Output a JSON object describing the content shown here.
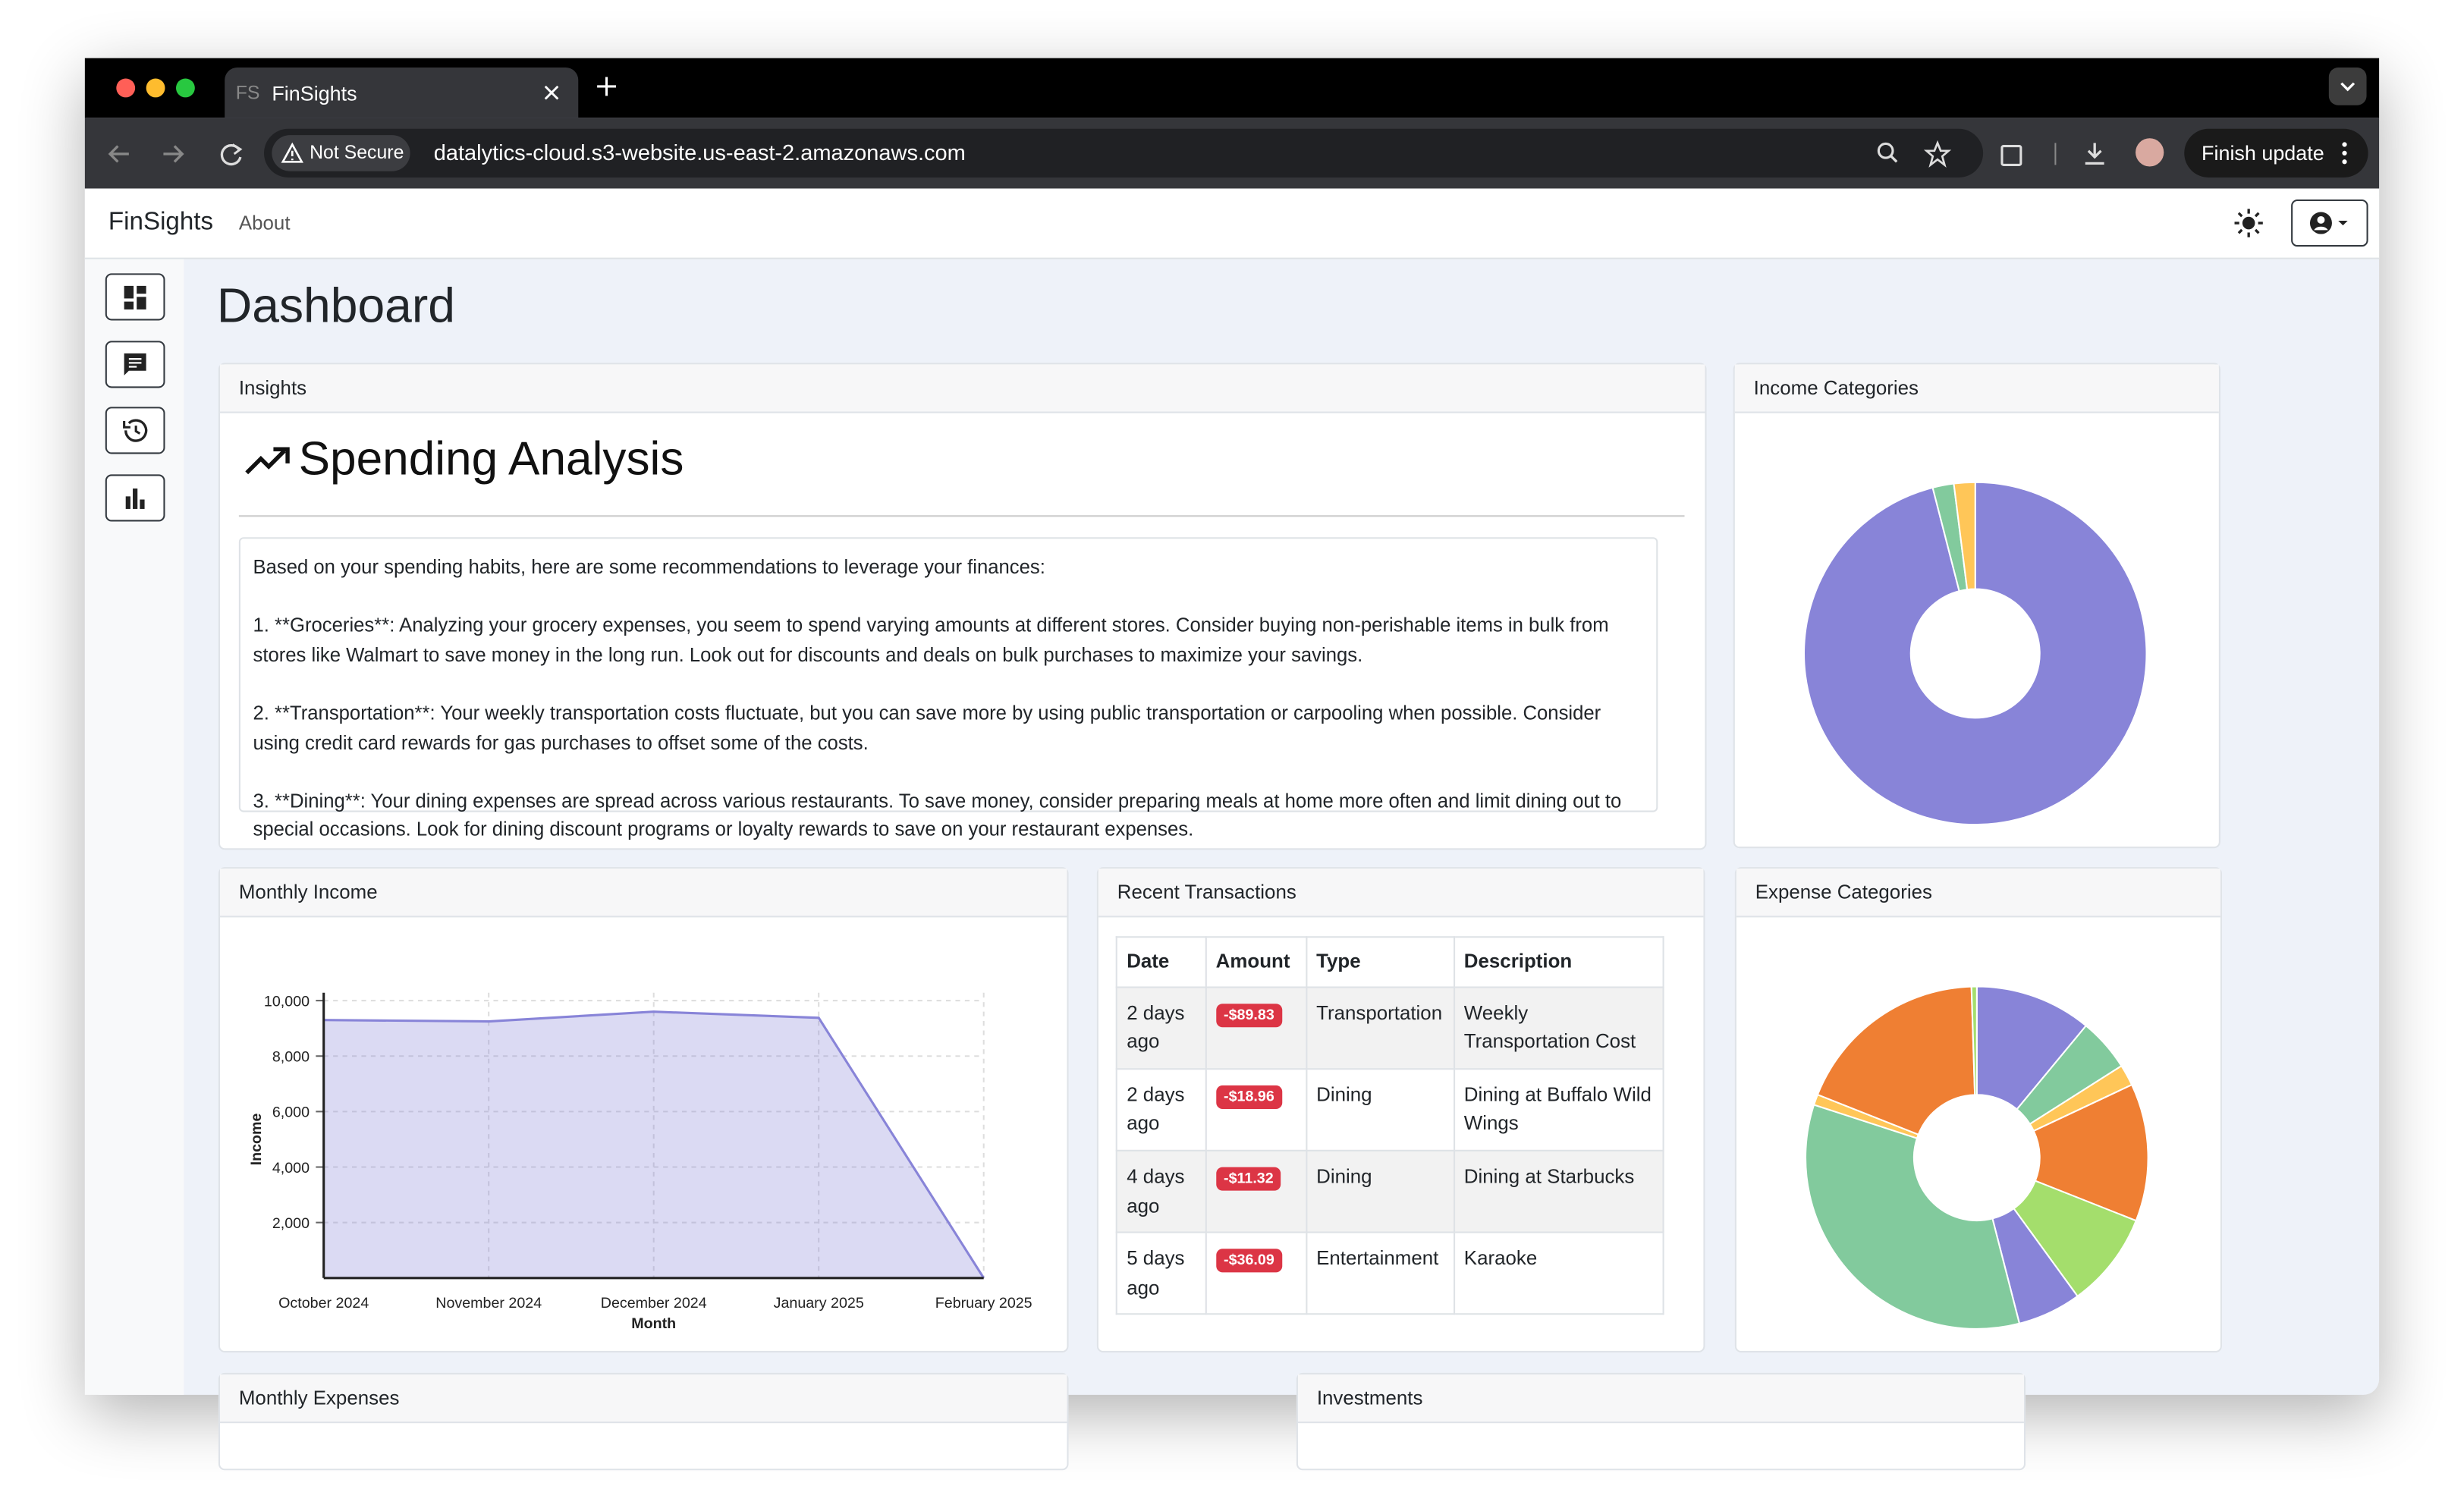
{
  "browser": {
    "tab_icon": "FS",
    "tab_title": "FinSights",
    "security": "Not Secure",
    "url": "datalytics-cloud.s3-website.us-east-2.amazonaws.com",
    "update_button": "Finish update"
  },
  "navbar": {
    "brand": "FinSights",
    "links": [
      "About"
    ]
  },
  "page": {
    "title": "Dashboard"
  },
  "insights": {
    "card_title": "Insights",
    "heading": "Spending Analysis",
    "paragraphs": [
      "Based on your spending habits, here are some recommendations to leverage your finances:",
      "1. **Groceries**: Analyzing your grocery expenses, you seem to spend varying amounts at different stores. Consider buying non-perishable items in bulk from stores like Walmart to save money in the long run. Look out for discounts and deals on bulk purchases to maximize your savings.",
      "2. **Transportation**: Your weekly transportation costs fluctuate, but you can save more by using public transportation or carpooling when possible. Consider using credit card rewards for gas purchases to offset some of the costs.",
      "3. **Dining**: Your dining expenses are spread across various restaurants. To save money, consider preparing meals at home more often and limit dining out to special occasions. Look for dining discount programs or loyalty rewards to save on your restaurant expenses."
    ]
  },
  "transactions": {
    "card_title": "Recent Transactions",
    "columns": [
      "Date",
      "Amount",
      "Type",
      "Description"
    ],
    "rows": [
      [
        "2 days ago",
        "-$89.83",
        "Transportation",
        "Weekly Transportation Cost"
      ],
      [
        "2 days ago",
        "-$18.96",
        "Dining",
        "Dining at Buffalo Wild Wings"
      ],
      [
        "4 days ago",
        "-$11.32",
        "Dining",
        "Dining at Starbucks"
      ],
      [
        "5 days ago",
        "-$36.09",
        "Entertainment",
        "Karaoke"
      ]
    ]
  },
  "cards": {
    "monthly_expenses": "Monthly Expenses",
    "investments": "Investments"
  },
  "chart_data": [
    {
      "type": "donut",
      "title": "Income Categories",
      "values": [
        96,
        2,
        2
      ],
      "colors": [
        "#8884d8",
        "#82ca9d",
        "#ffc658"
      ]
    },
    {
      "type": "area",
      "title": "Monthly Income",
      "x_label": "Month",
      "y_label": "Income",
      "categories": [
        "October 2024",
        "November 2024",
        "December 2024",
        "January 2025",
        "February 2025"
      ],
      "values": [
        9300,
        9250,
        9600,
        9380,
        0
      ],
      "color": "#8884d8",
      "ylim": [
        0,
        10000
      ],
      "yticks": [
        {
          "value": 2000,
          "label": "2,000"
        },
        {
          "value": 4000,
          "label": "4,000"
        },
        {
          "value": 6000,
          "label": "6,000"
        },
        {
          "value": 8000,
          "label": "8,000"
        },
        {
          "value": 10000,
          "label": "10,000"
        }
      ],
      "grid": true
    },
    {
      "type": "donut",
      "title": "Expense Categories",
      "values": [
        11,
        5,
        2,
        13,
        9,
        6,
        34,
        1,
        18.5,
        0.5
      ],
      "colors": [
        "#8884d8",
        "#82ca9d",
        "#ffc658",
        "#ef7f33",
        "#a4de6c",
        "#8884d8",
        "#82ca9d",
        "#ffc658",
        "#ef7f33",
        "#a4de6c"
      ]
    }
  ]
}
